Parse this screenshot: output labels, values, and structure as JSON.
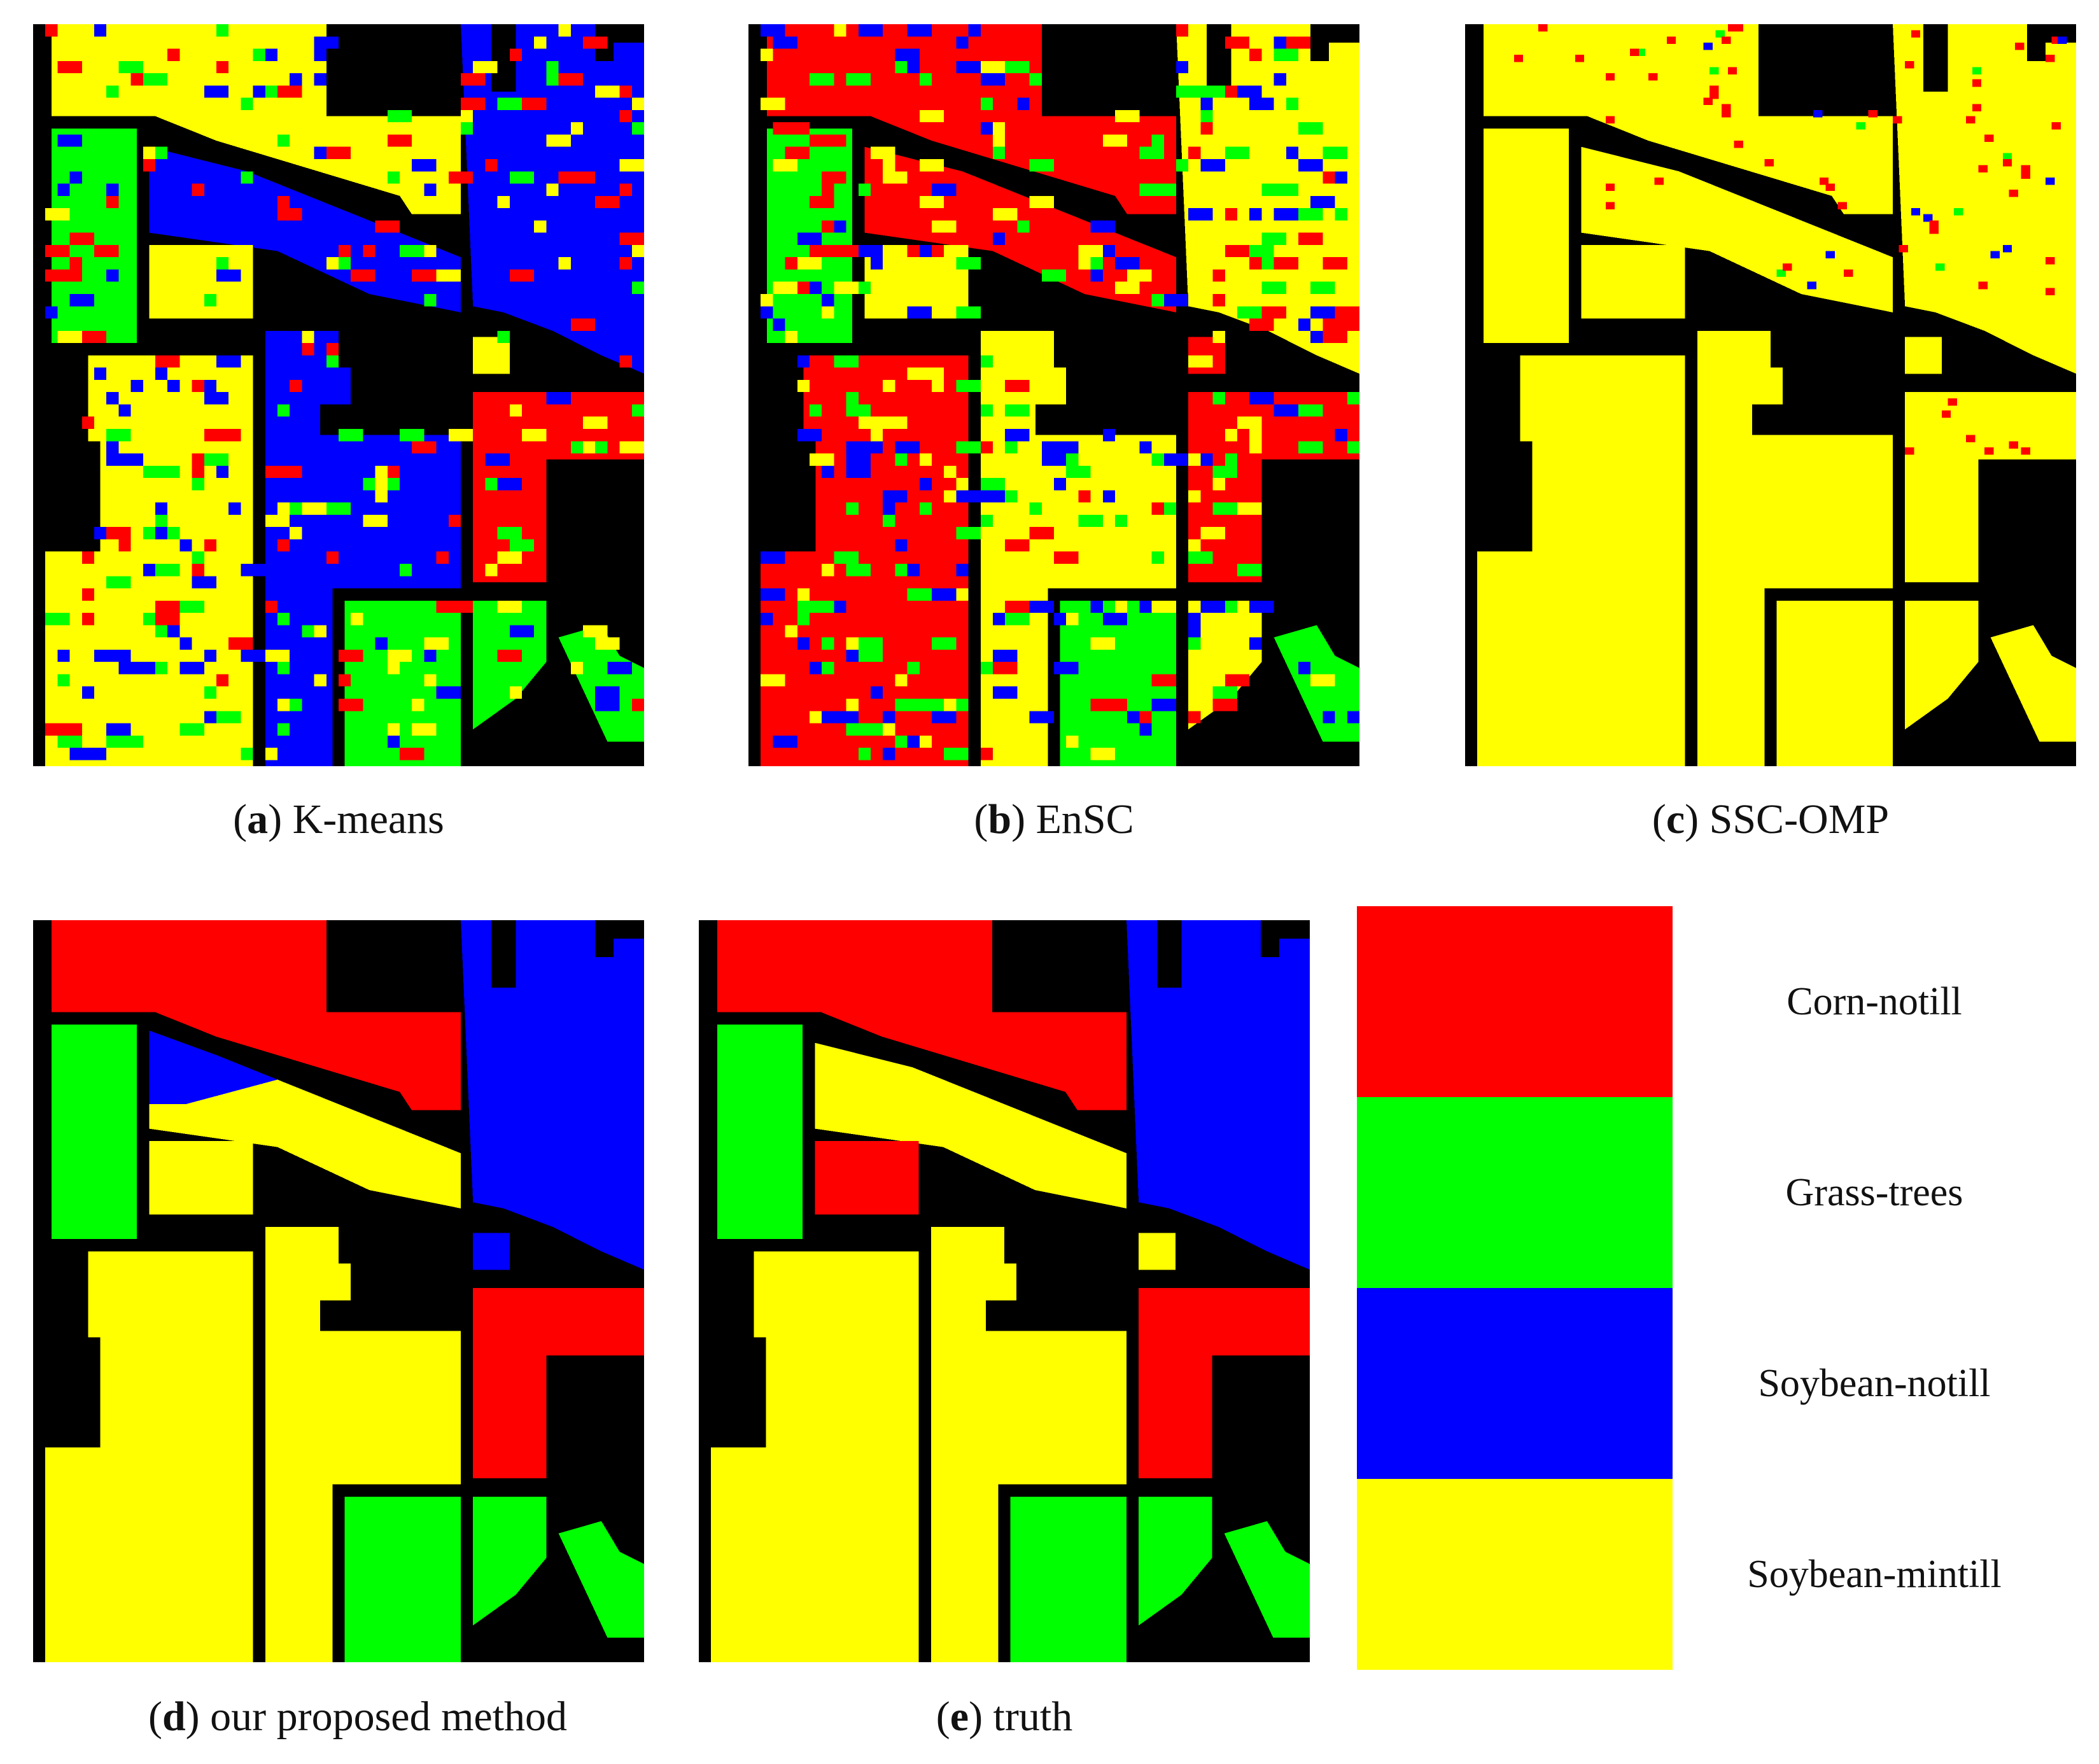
{
  "figure": {
    "panels": [
      {
        "letter": "a",
        "name": " K-means",
        "noise": 0.4
      },
      {
        "letter": "b",
        "name": " EnSC",
        "noise": 0.45
      },
      {
        "letter": "c",
        "name": " SSC-OMP",
        "noise": 0.0
      },
      {
        "letter": "d",
        "name": " our proposed method",
        "noise": 0.0
      },
      {
        "letter": "e",
        "name": " truth",
        "noise": 0.0
      }
    ],
    "legend": [
      {
        "label": "Corn-notill",
        "color": "#ff0000"
      },
      {
        "label": "Grass-trees",
        "color": "#00ff00"
      },
      {
        "label": "Soybean-notill",
        "color": "#0000ff"
      },
      {
        "label": "Soybean-mintill",
        "color": "#ffff00"
      }
    ],
    "background_color": "#000000"
  }
}
